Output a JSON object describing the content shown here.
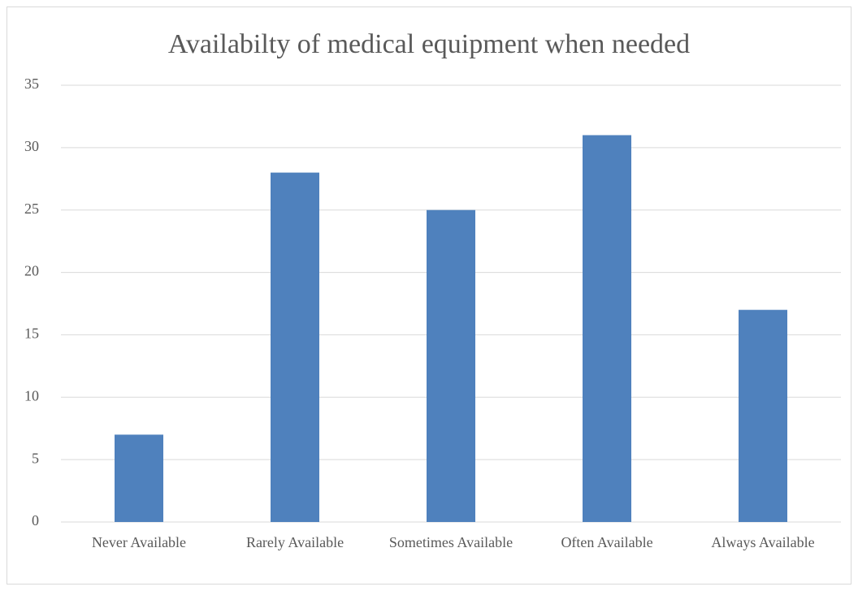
{
  "chart_data": {
    "type": "bar",
    "title": "Availabilty of medical equipment when needed",
    "categories": [
      "Never Available",
      "Rarely Available",
      "Sometimes Available",
      "Often Available",
      "Always Available"
    ],
    "values": [
      7,
      28,
      25,
      31,
      17
    ],
    "color": "#4f81bd",
    "ylim": [
      0,
      35
    ],
    "yticks": [
      0,
      5,
      10,
      15,
      20,
      25,
      30,
      35
    ],
    "grid": true
  }
}
